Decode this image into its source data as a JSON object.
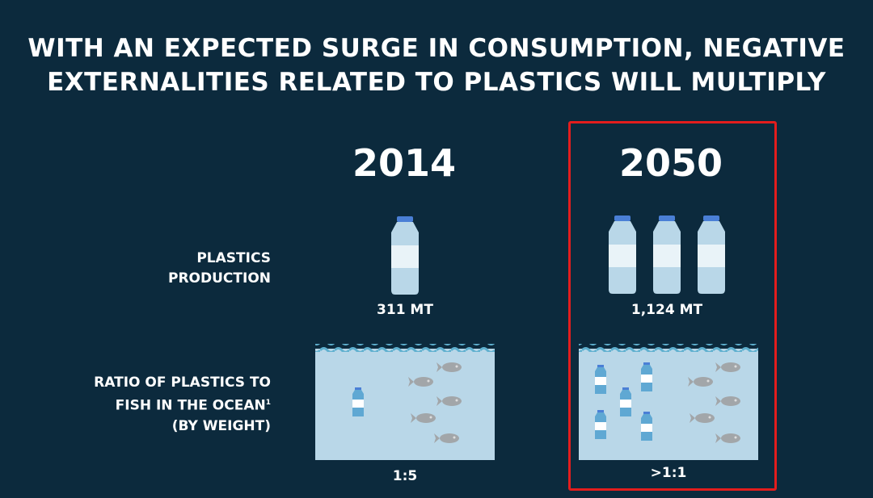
{
  "title": {
    "line1": "WITH AN EXPECTED SURGE IN CONSUMPTION, NEGATIVE",
    "line2": "EXTERNALITIES  RELATED TO PLASTICS WILL MULTIPLY"
  },
  "columns": [
    {
      "year": "2014",
      "production": "311 MT",
      "ratio": "1:5",
      "bottles_production": 1,
      "bottles_in_ocean": 1,
      "fish_in_ocean": 5
    },
    {
      "year": "2050",
      "production": "1,124 MT",
      "ratio": ">1:1",
      "bottles_production": 3,
      "bottles_in_ocean": 5,
      "fish_in_ocean": 5,
      "highlighted": true
    }
  ],
  "rows": {
    "production_label": [
      "PLASTICS",
      "PRODUCTION"
    ],
    "ratio_label": [
      "RATIO OF PLASTICS TO",
      "FISH IN THE OCEAN",
      "(BY WEIGHT)"
    ],
    "ratio_footnote": "1"
  },
  "colors": {
    "background": "#0c2a3d",
    "water": "#b9d7e8",
    "highlight": "#e31d1d",
    "bottle_cap": "#4a7fd6"
  }
}
